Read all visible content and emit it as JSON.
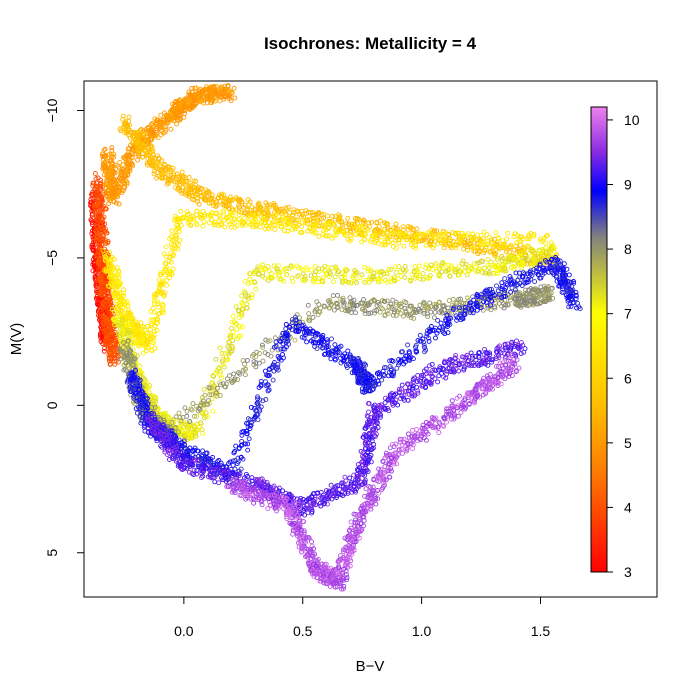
{
  "chart_data": {
    "type": "scatter",
    "title": "Isochrones: Metallicity = 4",
    "xlabel": "B−V",
    "ylabel": "M(V)",
    "xlim": [
      -0.42,
      1.99
    ],
    "ylim": [
      6.5,
      -11.0
    ],
    "y_reversed": true,
    "x_ticks": [
      0.0,
      0.5,
      1.0,
      1.5
    ],
    "x_tick_labels": [
      "0.0",
      "0.5",
      "1.0",
      "1.5"
    ],
    "y_ticks": [
      -10,
      -5,
      0,
      5
    ],
    "y_tick_labels": [
      "−10",
      "−5",
      "0",
      "5"
    ],
    "grid": false,
    "marker": "open circle",
    "color_by": "age (log years)",
    "colorbar": {
      "range": [
        3,
        10.2
      ],
      "ticks": [
        3,
        4,
        5,
        6,
        7,
        8,
        9,
        10
      ],
      "tick_labels": [
        "3",
        "4",
        "5",
        "6",
        "7",
        "8",
        "9",
        "10"
      ],
      "color_stops": [
        {
          "value": 3.0,
          "color": "#ff0000"
        },
        {
          "value": 4.6,
          "color": "#ff7f00"
        },
        {
          "value": 5.6,
          "color": "#ffbf00"
        },
        {
          "value": 7.0,
          "color": "#ffff00"
        },
        {
          "value": 8.2,
          "color": "#808080"
        },
        {
          "value": 8.9,
          "color": "#0000ff"
        },
        {
          "value": 9.5,
          "color": "#8a2be2"
        },
        {
          "value": 10.2,
          "color": "#ee82ee"
        }
      ]
    },
    "series": [
      {
        "values_description": "approximate isochrone tracks",
        "tracks": [
          {
            "age": 3.2,
            "points": [
              [
                -0.37,
                -7.2
              ],
              [
                -0.36,
                -5.0
              ],
              [
                -0.34,
                -3.5
              ],
              [
                -0.32,
                -2.0
              ]
            ]
          },
          {
            "age": 4.0,
            "points": [
              [
                -0.36,
                -7.6
              ],
              [
                -0.34,
                -5.0
              ],
              [
                -0.32,
                -3.0
              ],
              [
                -0.29,
                -1.5
              ]
            ]
          },
          {
            "age": 5.0,
            "points": [
              [
                -0.32,
                -8.5
              ],
              [
                -0.3,
                -7.0
              ],
              [
                -0.2,
                -8.8
              ],
              [
                -0.05,
                -9.8
              ],
              [
                0.05,
                -10.5
              ],
              [
                0.2,
                -10.6
              ]
            ]
          },
          {
            "age": 5.6,
            "points": [
              [
                -0.25,
                -9.6
              ],
              [
                -0.1,
                -8.0
              ],
              [
                0.1,
                -7.0
              ],
              [
                0.4,
                -6.5
              ],
              [
                0.8,
                -6.0
              ],
              [
                1.2,
                -5.5
              ],
              [
                1.56,
                -4.9
              ]
            ]
          },
          {
            "age": 6.5,
            "points": [
              [
                -0.32,
                -5.0
              ],
              [
                -0.25,
                -3.0
              ],
              [
                -0.15,
                -2.0
              ],
              [
                -0.02,
                -6.4
              ],
              [
                0.4,
                -6.2
              ],
              [
                0.9,
                -5.6
              ],
              [
                1.55,
                -5.6
              ]
            ]
          },
          {
            "age": 7.2,
            "points": [
              [
                -0.28,
                -3.0
              ],
              [
                -0.2,
                -1.0
              ],
              [
                -0.1,
                0.5
              ],
              [
                0.05,
                1.0
              ],
              [
                0.3,
                -4.5
              ],
              [
                0.8,
                -4.4
              ],
              [
                1.3,
                -4.7
              ],
              [
                1.57,
                -5.2
              ]
            ]
          },
          {
            "age": 8.0,
            "points": [
              [
                -0.25,
                -2.0
              ],
              [
                -0.18,
                0.0
              ],
              [
                -0.08,
                1.0
              ],
              [
                0.6,
                -3.5
              ],
              [
                1.0,
                -3.2
              ],
              [
                1.4,
                -3.6
              ],
              [
                1.55,
                -3.8
              ]
            ]
          },
          {
            "age": 8.8,
            "points": [
              [
                -0.22,
                -1.0
              ],
              [
                -0.15,
                0.6
              ],
              [
                0.0,
                1.6
              ],
              [
                0.2,
                2.3
              ],
              [
                0.45,
                -2.8
              ],
              [
                0.72,
                -1.4
              ],
              [
                0.78,
                -0.6
              ],
              [
                1.2,
                -3.4
              ],
              [
                1.56,
                -4.8
              ],
              [
                1.65,
                -3.5
              ]
            ]
          },
          {
            "age": 9.3,
            "points": [
              [
                -0.15,
                0.5
              ],
              [
                0.0,
                2.0
              ],
              [
                0.3,
                2.7
              ],
              [
                0.5,
                3.5
              ],
              [
                0.75,
                2.5
              ],
              [
                0.8,
                0.2
              ],
              [
                1.1,
                -1.3
              ],
              [
                1.44,
                -2.0
              ]
            ]
          },
          {
            "age": 9.8,
            "points": [
              [
                0.2,
                2.7
              ],
              [
                0.45,
                3.5
              ],
              [
                0.55,
                5.5
              ],
              [
                0.65,
                6.0
              ],
              [
                0.74,
                3.8
              ],
              [
                0.9,
                1.5
              ],
              [
                1.2,
                -0.2
              ],
              [
                1.4,
                -1.5
              ]
            ]
          }
        ]
      }
    ]
  }
}
